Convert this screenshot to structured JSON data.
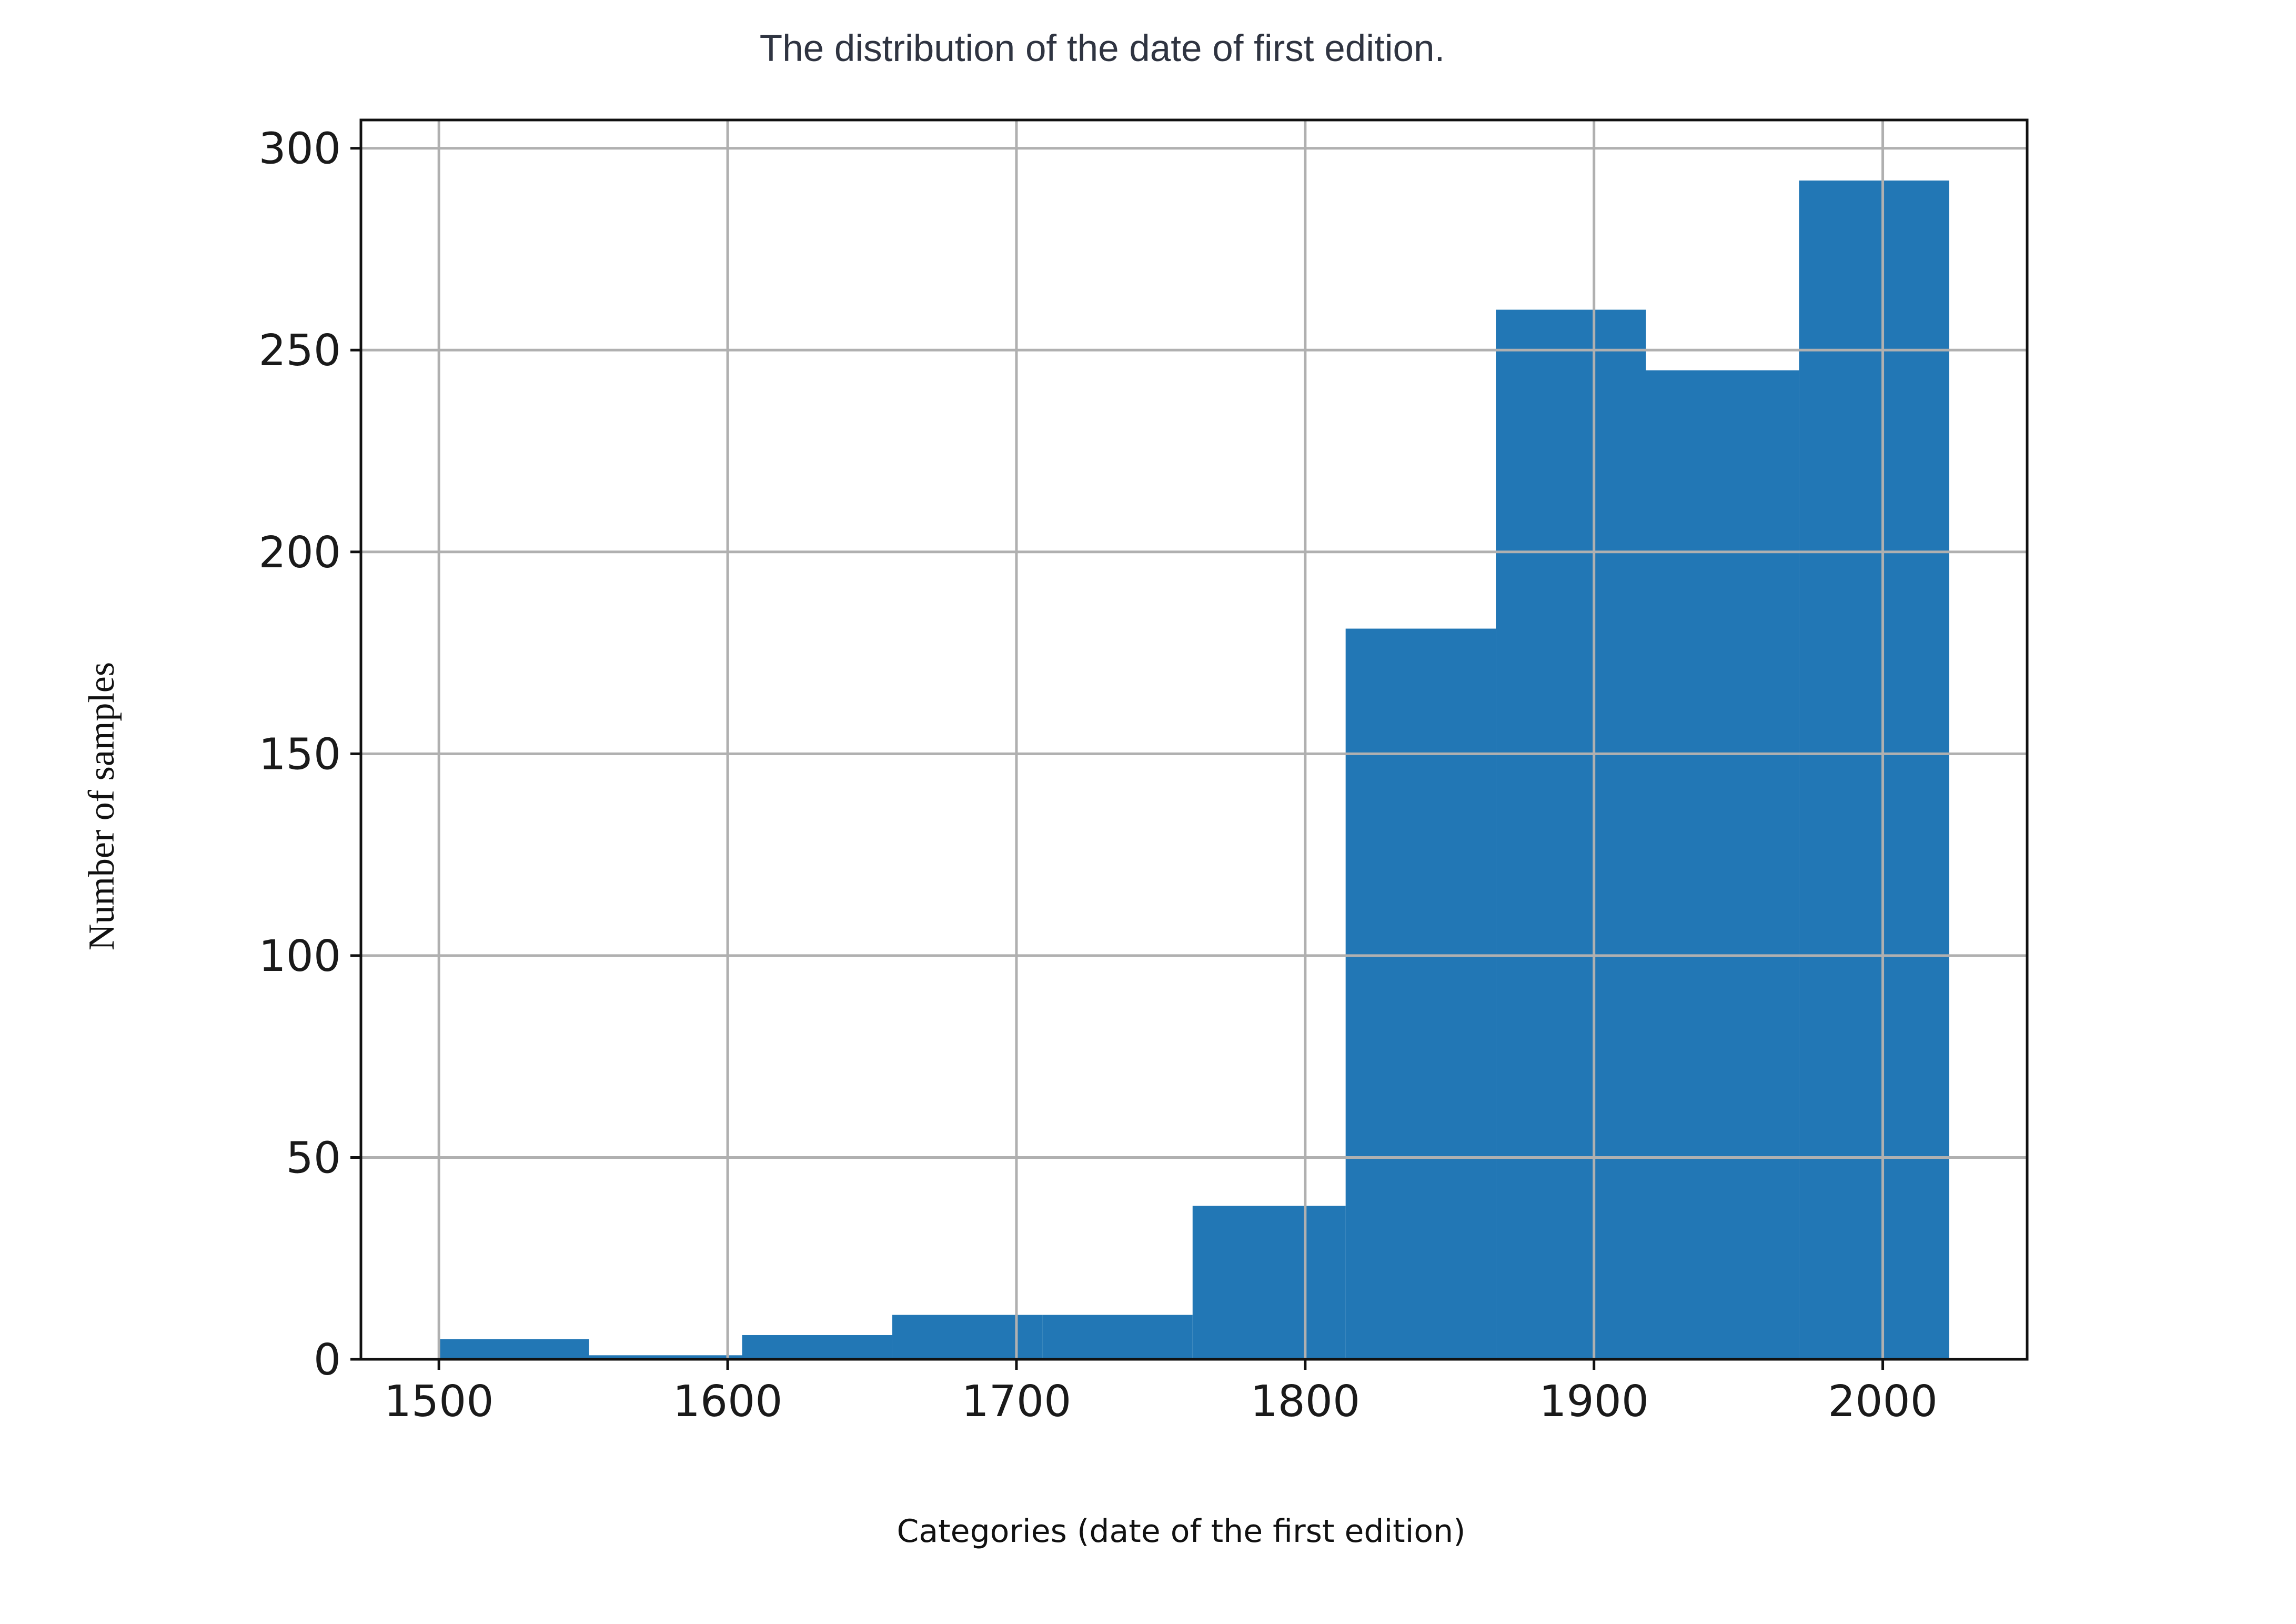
{
  "chart_data": {
    "type": "bar",
    "title": "The distribution of the date of first edition.",
    "xlabel": "Categories (date of the first edition)",
    "ylabel": "Number of samples",
    "bins": [
      {
        "start": 1500,
        "end": 1552,
        "count": 5
      },
      {
        "start": 1552,
        "end": 1605,
        "count": 1
      },
      {
        "start": 1605,
        "end": 1657,
        "count": 6
      },
      {
        "start": 1657,
        "end": 1709,
        "count": 11
      },
      {
        "start": 1709,
        "end": 1761,
        "count": 11
      },
      {
        "start": 1761,
        "end": 1814,
        "count": 38
      },
      {
        "start": 1814,
        "end": 1866,
        "count": 181
      },
      {
        "start": 1866,
        "end": 1918,
        "count": 260
      },
      {
        "start": 1918,
        "end": 1971,
        "count": 245
      },
      {
        "start": 1971,
        "end": 2023,
        "count": 292
      }
    ],
    "xlim": [
      1473,
      2050
    ],
    "ylim": [
      0,
      307
    ],
    "xticks": [
      1500,
      1600,
      1700,
      1800,
      1900,
      2000
    ],
    "yticks": [
      0,
      50,
      100,
      150,
      200,
      250,
      300
    ],
    "grid": true,
    "bar_color": "#2277b5",
    "grid_color": "#b0b0b0"
  }
}
